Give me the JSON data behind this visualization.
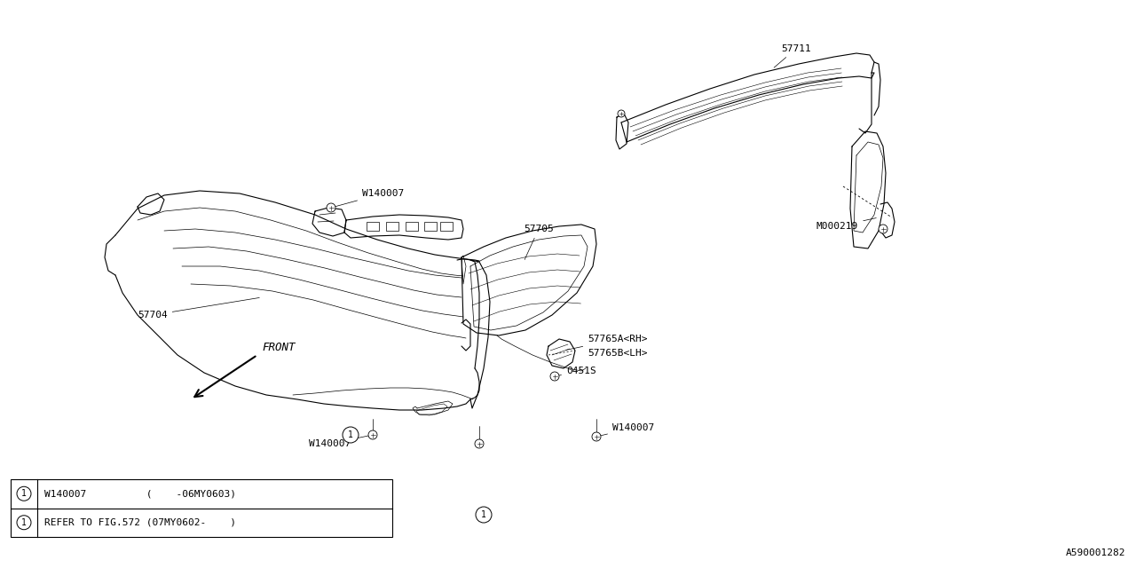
{
  "bg_color": "#ffffff",
  "line_color": "#000000",
  "lw_main": 0.8,
  "lw_thin": 0.5,
  "lw_label": 0.5,
  "font_size_labels": 8,
  "font_size_table": 8,
  "font_size_diagram_id": 8,
  "diagram_id": "A590001282",
  "front_label": "FRONT",
  "table_row1": "     W140007          (    -06MY0603)",
  "table_row2": "     REFER TO FIG.572 (07MY0602-    )",
  "table_col1_row1": "W140007",
  "table_col1_row2": "REFER TO FIG.572",
  "table_col2_row1": "(    -06MY0603)",
  "table_col2_row2": "(07MY0602-    )"
}
